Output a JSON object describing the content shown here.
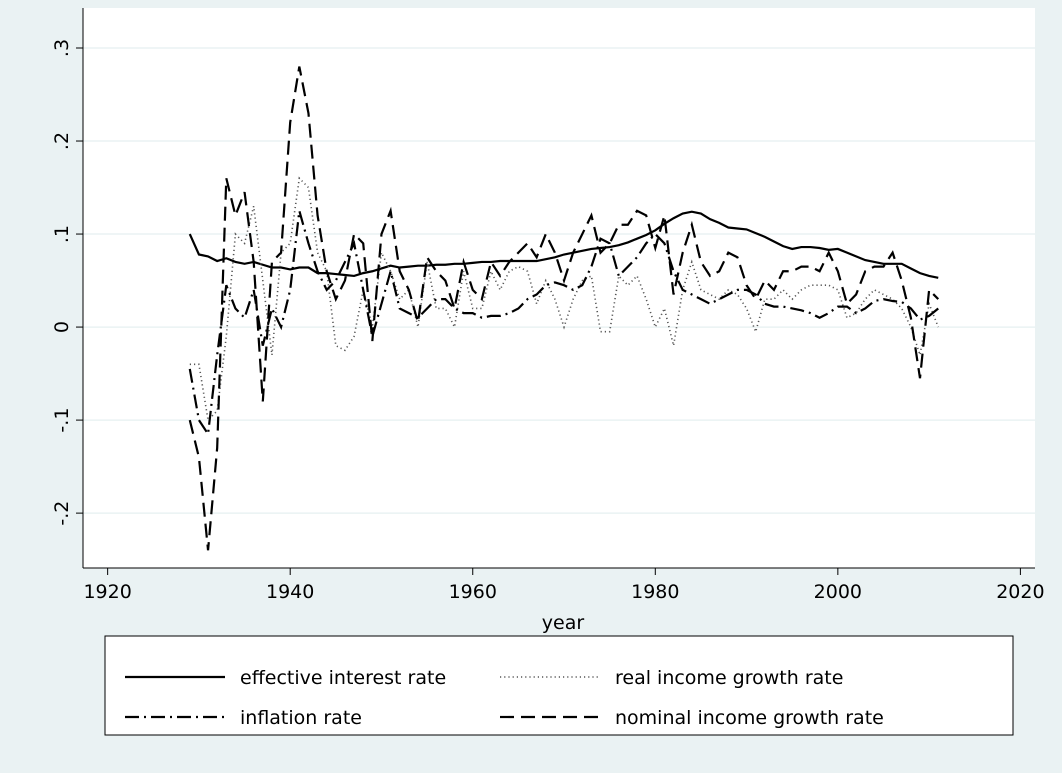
{
  "chart_data": {
    "type": "line",
    "x_label": "year",
    "x": [
      1929,
      1930,
      1931,
      1932,
      1933,
      1934,
      1935,
      1936,
      1937,
      1938,
      1939,
      1940,
      1941,
      1942,
      1943,
      1944,
      1945,
      1946,
      1947,
      1948,
      1949,
      1950,
      1951,
      1952,
      1953,
      1954,
      1955,
      1956,
      1957,
      1958,
      1959,
      1960,
      1961,
      1962,
      1963,
      1964,
      1965,
      1966,
      1967,
      1968,
      1969,
      1970,
      1971,
      1972,
      1973,
      1974,
      1975,
      1976,
      1977,
      1978,
      1979,
      1980,
      1981,
      1982,
      1983,
      1984,
      1985,
      1986,
      1987,
      1988,
      1989,
      1990,
      1991,
      1992,
      1993,
      1994,
      1995,
      1996,
      1997,
      1998,
      1999,
      2000,
      2001,
      2002,
      2003,
      2004,
      2005,
      2006,
      2007,
      2008,
      2009,
      2010,
      2011
    ],
    "series": [
      {
        "name": "effective interest rate",
        "color": "#000000",
        "style": "solid",
        "values": [
          0.1,
          0.078,
          0.076,
          0.071,
          0.074,
          0.07,
          0.068,
          0.07,
          0.067,
          0.064,
          0.064,
          0.062,
          0.064,
          0.064,
          0.058,
          0.058,
          0.057,
          0.056,
          0.055,
          0.058,
          0.06,
          0.063,
          0.066,
          0.064,
          0.065,
          0.066,
          0.066,
          0.067,
          0.067,
          0.068,
          0.068,
          0.069,
          0.07,
          0.07,
          0.071,
          0.071,
          0.071,
          0.071,
          0.071,
          0.073,
          0.075,
          0.078,
          0.08,
          0.082,
          0.084,
          0.085,
          0.086,
          0.088,
          0.091,
          0.095,
          0.099,
          0.104,
          0.111,
          0.117,
          0.122,
          0.124,
          0.122,
          0.116,
          0.112,
          0.107,
          0.106,
          0.105,
          0.101,
          0.097,
          0.092,
          0.087,
          0.084,
          0.086,
          0.086,
          0.085,
          0.083,
          0.084,
          0.08,
          0.076,
          0.072,
          0.07,
          0.068,
          0.068,
          0.068,
          0.063,
          0.058,
          0.055,
          0.053
        ]
      },
      {
        "name": "real income growth rate",
        "color": "#555555",
        "style": "dot",
        "values": [
          -0.04,
          -0.04,
          -0.1,
          -0.09,
          -0.01,
          0.1,
          0.09,
          0.13,
          0.05,
          -0.03,
          0.08,
          0.09,
          0.16,
          0.15,
          0.08,
          0.06,
          -0.02,
          -0.025,
          -0.01,
          0.04,
          0.0,
          0.08,
          0.06,
          0.03,
          0.04,
          0.0,
          0.07,
          0.02,
          0.02,
          0.0,
          0.06,
          0.02,
          0.02,
          0.06,
          0.04,
          0.06,
          0.065,
          0.06,
          0.025,
          0.05,
          0.03,
          0.0,
          0.03,
          0.05,
          0.055,
          -0.005,
          -0.005,
          0.055,
          0.045,
          0.055,
          0.03,
          0.0,
          0.02,
          -0.02,
          0.04,
          0.07,
          0.04,
          0.035,
          0.03,
          0.04,
          0.035,
          0.02,
          -0.005,
          0.03,
          0.03,
          0.04,
          0.03,
          0.04,
          0.045,
          0.045,
          0.045,
          0.04,
          0.01,
          0.015,
          0.03,
          0.04,
          0.035,
          0.03,
          0.02,
          0.0,
          -0.03,
          0.025,
          0.0
        ]
      },
      {
        "name": "inflation rate",
        "color": "#000000",
        "style": "dashdot",
        "values": [
          -0.045,
          -0.1,
          -0.115,
          -0.03,
          0.045,
          0.02,
          0.01,
          0.04,
          -0.02,
          0.02,
          0.0,
          0.04,
          0.125,
          0.09,
          0.06,
          0.04,
          0.05,
          0.07,
          0.09,
          0.04,
          -0.01,
          0.025,
          0.06,
          0.02,
          0.015,
          0.01,
          0.02,
          0.03,
          0.03,
          0.02,
          0.015,
          0.015,
          0.01,
          0.012,
          0.012,
          0.015,
          0.02,
          0.03,
          0.035,
          0.045,
          0.048,
          0.045,
          0.04,
          0.045,
          0.065,
          0.095,
          0.09,
          0.055,
          0.065,
          0.075,
          0.09,
          0.1,
          0.09,
          0.06,
          0.04,
          0.035,
          0.03,
          0.025,
          0.03,
          0.035,
          0.04,
          0.04,
          0.035,
          0.025,
          0.022,
          0.022,
          0.02,
          0.018,
          0.015,
          0.01,
          0.015,
          0.022,
          0.022,
          0.015,
          0.02,
          0.028,
          0.03,
          0.028,
          0.027,
          0.02,
          0.008,
          0.012,
          0.02
        ]
      },
      {
        "name": "nominal income growth rate",
        "color": "#000000",
        "style": "dash",
        "values": [
          -0.1,
          -0.14,
          -0.24,
          -0.13,
          0.16,
          0.12,
          0.145,
          0.07,
          -0.08,
          0.07,
          0.08,
          0.22,
          0.28,
          0.23,
          0.12,
          0.06,
          0.03,
          0.05,
          0.1,
          0.09,
          -0.015,
          0.1,
          0.125,
          0.06,
          0.04,
          0.005,
          0.075,
          0.06,
          0.05,
          0.02,
          0.07,
          0.04,
          0.03,
          0.07,
          0.055,
          0.07,
          0.08,
          0.09,
          0.075,
          0.1,
          0.08,
          0.05,
          0.08,
          0.1,
          0.12,
          0.08,
          0.09,
          0.11,
          0.11,
          0.125,
          0.12,
          0.085,
          0.12,
          0.035,
          0.08,
          0.11,
          0.07,
          0.055,
          0.06,
          0.08,
          0.075,
          0.045,
          0.03,
          0.05,
          0.04,
          0.06,
          0.06,
          0.065,
          0.065,
          0.06,
          0.08,
          0.06,
          0.025,
          0.035,
          0.06,
          0.065,
          0.065,
          0.08,
          0.05,
          0.01,
          -0.055,
          0.04,
          0.03
        ]
      }
    ],
    "xlim": [
      1917.3,
      2021.6
    ],
    "xticks": [
      1920,
      1940,
      1960,
      1980,
      2000,
      2020
    ],
    "ylim": [
      -0.259,
      0.343
    ],
    "yticks": [
      {
        "value": -0.2,
        "label": "-.2"
      },
      {
        "value": -0.1,
        "label": "-.1"
      },
      0,
      {
        "value": 0.1,
        "label": ".1"
      },
      {
        "value": 0.2,
        "label": ".2"
      },
      {
        "value": 0.3,
        "label": ".3"
      }
    ],
    "grid": true
  }
}
